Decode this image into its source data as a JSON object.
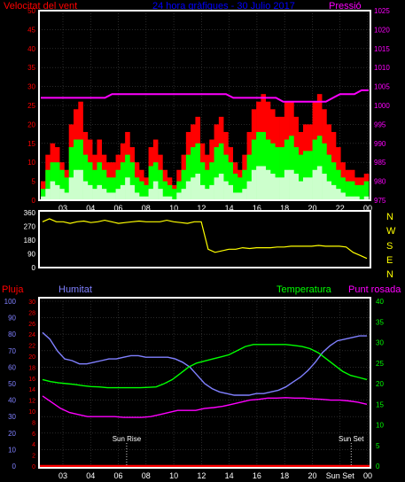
{
  "colors": {
    "wind_gust": "#ff0000",
    "wind_avg": "#00ff00",
    "wind_min": "#ccffcc",
    "pressure": "#ff00ff",
    "direction": "#ffff00",
    "rain": "#ff0000",
    "humidity": "#8080ff",
    "temperature": "#00ff00",
    "dew_point": "#ff00ff",
    "frame": "#ffffff",
    "axis": "#ffffff"
  },
  "chart_data": [
    {
      "type": "area",
      "title": "24 hora gràfiques - 30 Julio 2017",
      "series_labels": {
        "wind": "Velocitat del vent",
        "pressure": "Pressió"
      },
      "x_ticks": [
        "03",
        "04",
        "06",
        "08",
        "10",
        "12",
        "14",
        "16",
        "18",
        "20",
        "22",
        "00"
      ],
      "y_left_ticks": [
        "0",
        "5",
        "10",
        "15",
        "20",
        "25",
        "30",
        "35",
        "40",
        "45",
        "50"
      ],
      "y_right_ticks": [
        "975",
        "980",
        "985",
        "990",
        "995",
        "1000",
        "1005",
        "1010",
        "1015",
        "1020",
        "1025"
      ],
      "ylim_left": [
        0,
        50
      ],
      "ylim_right": [
        975,
        1025
      ],
      "wind_gust": [
        5,
        12,
        15,
        14,
        10,
        8,
        20,
        24,
        26,
        18,
        16,
        12,
        16,
        12,
        10,
        10,
        12,
        15,
        18,
        14,
        10,
        8,
        6,
        14,
        16,
        12,
        8,
        6,
        4,
        8,
        12,
        18,
        20,
        22,
        15,
        12,
        16,
        20,
        22,
        18,
        14,
        10,
        8,
        12,
        18,
        24,
        26,
        28,
        26,
        24,
        22,
        22,
        26,
        26,
        22,
        18,
        20,
        20,
        26,
        28,
        24,
        20,
        18,
        14,
        10,
        8,
        8,
        6,
        6,
        7
      ],
      "wind_avg": [
        3,
        8,
        10,
        10,
        8,
        6,
        14,
        16,
        16,
        12,
        10,
        8,
        10,
        8,
        6,
        6,
        8,
        10,
        12,
        10,
        6,
        5,
        4,
        9,
        10,
        8,
        5,
        4,
        3,
        5,
        8,
        12,
        14,
        15,
        10,
        8,
        10,
        14,
        15,
        12,
        10,
        7,
        6,
        8,
        12,
        16,
        18,
        18,
        16,
        15,
        14,
        14,
        16,
        17,
        14,
        12,
        13,
        13,
        16,
        17,
        15,
        12,
        10,
        8,
        6,
        5,
        5,
        4,
        4,
        5
      ],
      "wind_min": [
        1,
        3,
        5,
        4,
        3,
        2,
        6,
        8,
        8,
        5,
        4,
        3,
        4,
        3,
        2,
        2,
        3,
        4,
        6,
        4,
        2,
        1,
        1,
        3,
        5,
        3,
        1,
        1,
        0,
        2,
        3,
        5,
        6,
        7,
        4,
        3,
        4,
        6,
        7,
        5,
        4,
        2,
        2,
        3,
        5,
        8,
        9,
        9,
        8,
        7,
        6,
        6,
        8,
        8,
        7,
        5,
        6,
        6,
        8,
        9,
        7,
        5,
        4,
        3,
        2,
        1,
        1,
        1,
        0,
        1
      ],
      "pressure": [
        1002,
        1002,
        1002,
        1002,
        1002,
        1002,
        1002,
        1002,
        1002,
        1002,
        1003,
        1003,
        1003,
        1003,
        1003,
        1003,
        1003,
        1003,
        1003,
        1003,
        1003,
        1003,
        1003,
        1003,
        1003,
        1003,
        1003,
        1002,
        1002,
        1002,
        1002,
        1002,
        1002,
        1002,
        1001,
        1001,
        1001,
        1001,
        1001,
        1001,
        1001,
        1002,
        1003,
        1003,
        1003,
        1004,
        1004
      ]
    },
    {
      "type": "line",
      "y_ticks": [
        "0",
        "90",
        "180",
        "270",
        "360"
      ],
      "direction_labels": [
        "N",
        "W",
        "S",
        "E",
        "N"
      ],
      "ylim": [
        0,
        360
      ],
      "direction": [
        300,
        320,
        300,
        300,
        290,
        300,
        305,
        295,
        300,
        310,
        300,
        290,
        295,
        300,
        305,
        300,
        300,
        300,
        310,
        300,
        295,
        290,
        300,
        300,
        120,
        100,
        110,
        120,
        120,
        130,
        125,
        130,
        130,
        130,
        135,
        135,
        140,
        140,
        140,
        140,
        145,
        140,
        140,
        140,
        135,
        100,
        80,
        60
      ]
    },
    {
      "type": "line",
      "series_labels": {
        "rain": "Pluja",
        "humidity": "Humitat",
        "temperature": "Temperatura",
        "dew_point": "Punt rosada"
      },
      "x_ticks": [
        "03",
        "04",
        "06",
        "08",
        "10",
        "12",
        "14",
        "16",
        "18",
        "20",
        "Sun Set",
        "00"
      ],
      "rain_ticks": [
        "0",
        "2",
        "4",
        "6",
        "8",
        "10",
        "12",
        "14",
        "16",
        "18",
        "20",
        "22",
        "24",
        "26",
        "28",
        "30"
      ],
      "humidity_ticks": [
        "0",
        "10",
        "20",
        "30",
        "40",
        "50",
        "60",
        "70",
        "80",
        "90",
        "100"
      ],
      "temp_ticks": [
        "0",
        "5",
        "10",
        "15",
        "20",
        "25",
        "30",
        "35",
        "40"
      ],
      "sun_rise_label": "Sun Rise",
      "sun_set_label": "Sun Set",
      "sun_rise_hour": 6.6,
      "sun_set_hour": 22.8,
      "humidity": [
        81,
        77,
        70,
        65,
        64,
        62,
        62,
        63,
        64,
        65,
        65,
        66,
        67,
        67,
        66,
        66,
        66,
        66,
        65,
        63,
        60,
        55,
        50,
        47,
        45,
        44,
        43,
        43,
        43,
        44,
        44,
        45,
        46,
        48,
        51,
        54,
        58,
        63,
        69,
        73,
        76,
        77,
        78,
        79,
        79
      ],
      "temperature": [
        21,
        20.5,
        20.2,
        20,
        19.8,
        19.5,
        19.3,
        19.2,
        19,
        19,
        19,
        19,
        19,
        19.1,
        19.2,
        20,
        21,
        22.5,
        24,
        25,
        25.5,
        26,
        26.5,
        27,
        28,
        29,
        29.5,
        29.5,
        29.5,
        29.5,
        29.5,
        29.3,
        29,
        28.5,
        27.5,
        26,
        24.5,
        23,
        22,
        21.5,
        21
      ],
      "dew_point": [
        17,
        15.5,
        14,
        13,
        12.5,
        12,
        12,
        12,
        12,
        11.8,
        11.8,
        11.8,
        12,
        12.5,
        13,
        13.5,
        13.5,
        13.5,
        14,
        14.2,
        14.5,
        15,
        15.5,
        16,
        16.2,
        16.5,
        16.5,
        16.6,
        16.5,
        16.5,
        16.3,
        16.2,
        16,
        16,
        15.8,
        15.5,
        15
      ],
      "rain": [
        0,
        0,
        0,
        0,
        0,
        0,
        0,
        0,
        0,
        0,
        0,
        0,
        0,
        0,
        0,
        0,
        0,
        0,
        0,
        0,
        0,
        0,
        0,
        0,
        0
      ]
    }
  ]
}
